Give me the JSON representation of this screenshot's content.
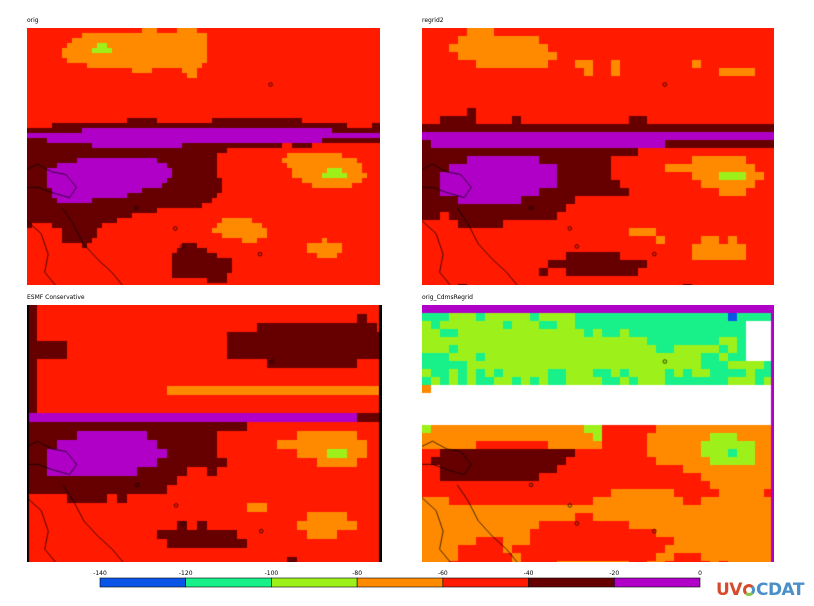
{
  "panels": [
    {
      "title": "orig",
      "mode": "orig"
    },
    {
      "title": "regrid2",
      "mode": "regrid2"
    },
    {
      "title": "ESMF Conservative",
      "mode": "esmf"
    },
    {
      "title": "orig_CdmsRegrid",
      "mode": "cdms"
    }
  ],
  "chart_data": {
    "type": "heatmap",
    "title": "",
    "panels": [
      "orig",
      "regrid2",
      "ESMF Conservative",
      "orig_CdmsRegrid"
    ],
    "colorbar": {
      "ticks": [
        -140,
        -120,
        -100,
        -80,
        -60,
        -40,
        -20,
        0
      ],
      "tick_labels": [
        "-140",
        "-120",
        "-100",
        "-80",
        "-60",
        "-40",
        "-20",
        "0"
      ],
      "bins": [
        {
          "range": [
            -140,
            -120
          ],
          "color": "#0a55e8"
        },
        {
          "range": [
            -120,
            -100
          ],
          "color": "#18f08a"
        },
        {
          "range": [
            -100,
            -80
          ],
          "color": "#9ef01a"
        },
        {
          "range": [
            -80,
            -60
          ],
          "color": "#ff8a00"
        },
        {
          "range": [
            -60,
            -40
          ],
          "color": "#ff1a00"
        },
        {
          "range": [
            -40,
            -20
          ],
          "color": "#660000"
        },
        {
          "range": [
            -20,
            0
          ],
          "color": "#b000c8"
        }
      ]
    },
    "coastlines": true,
    "missing_color": "#ffffff"
  },
  "logo": {
    "part1": "UV",
    "part2": "CDAT"
  }
}
